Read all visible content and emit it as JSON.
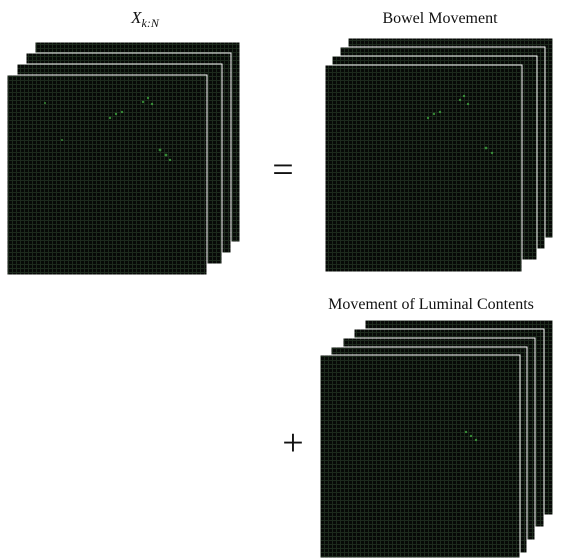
{
  "labels": {
    "input": "X",
    "input_subscript": "k:N",
    "bowel": "Bowel Movement",
    "luminal": "Movement of Luminal Contents"
  },
  "operators": {
    "equals": "=",
    "plus": "+"
  }
}
